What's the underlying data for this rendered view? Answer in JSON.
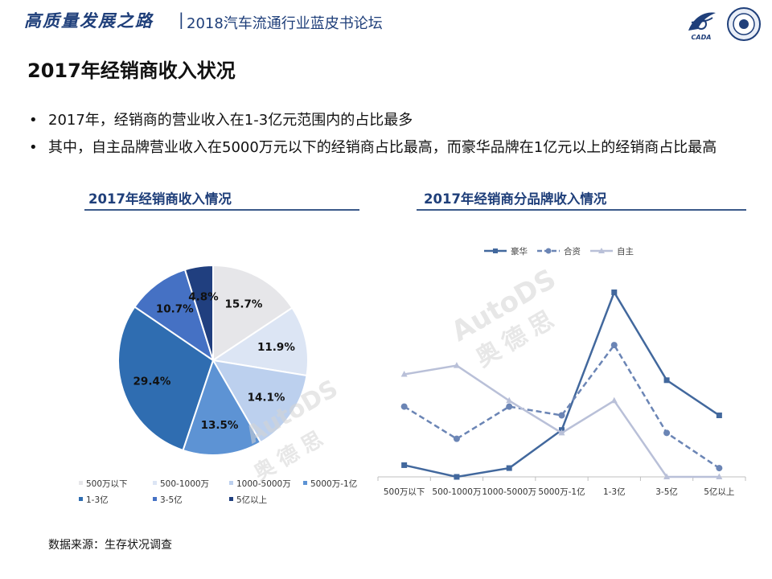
{
  "header": {
    "brand": "高质量发展之路",
    "separator": "|",
    "forum": "2018汽车流通行业蓝皮书论坛",
    "logo_text": "CADA"
  },
  "page_title": "2017年经销商收入状况",
  "bullets": [
    "2017年，经销商的营业收入在1-3亿元范围内的占比最多",
    "其中，自主品牌营业收入在5000万元以下的经销商占比最高，而豪华品牌在1亿元以上的经销商占比最高"
  ],
  "source": "数据来源：生存状况调查",
  "watermark": {
    "text1": "AutoDS",
    "text2": "奥德思"
  },
  "colors": {
    "accent": "#1f3f7a",
    "lux": "#42689d",
    "jv": "#6b85b5",
    "self": "#b9c0d8"
  },
  "chart_data": [
    {
      "type": "pie",
      "title": "2017年经销商收入情况",
      "labels": [
        "500万以下",
        "500-1000万",
        "1000-5000万",
        "5000万-1亿",
        "1-3亿",
        "3-5亿",
        "5亿以上"
      ],
      "values": [
        15.7,
        11.9,
        14.1,
        13.5,
        29.4,
        10.7,
        4.8
      ],
      "value_labels": [
        "15.7%",
        "11.9%",
        "14.1%",
        "13.5%",
        "29.4%",
        "10.7%",
        "4.8%"
      ],
      "colors": [
        "#e6e6e9",
        "#dce5f4",
        "#bcd0ee",
        "#5d93d4",
        "#2f6db1",
        "#4571c4",
        "#203f7f"
      ],
      "legend_position": "bottom",
      "legend_visible_labels": [
        "500万以下",
        "500-1000万",
        "1000-5000万",
        "5000万-1亿",
        "1-3亿",
        "3-5亿",
        "5亿以上"
      ]
    },
    {
      "type": "line",
      "title": "2017年经销商分品牌收入情况",
      "categories": [
        "500万以下",
        "500-1000万",
        "1000-5000万",
        "5000万-1亿",
        "1-3亿",
        "3-5亿",
        "5亿以上"
      ],
      "series": [
        {
          "name": "豪华",
          "values": [
            4,
            0,
            3,
            16,
            63,
            33,
            21
          ],
          "color": "#42689d",
          "dash": "solid",
          "marker": "square"
        },
        {
          "name": "合资",
          "values": [
            24,
            13,
            24,
            21,
            45,
            15,
            3
          ],
          "color": "#6b85b5",
          "dash": "dashed",
          "marker": "circle"
        },
        {
          "name": "自主",
          "values": [
            35,
            38,
            26,
            15,
            26,
            0,
            0
          ],
          "color": "#b9c0d8",
          "dash": "solid",
          "marker": "triangle"
        }
      ],
      "ylim": [
        0,
        70
      ],
      "grid": false,
      "legend_position": "top"
    }
  ]
}
